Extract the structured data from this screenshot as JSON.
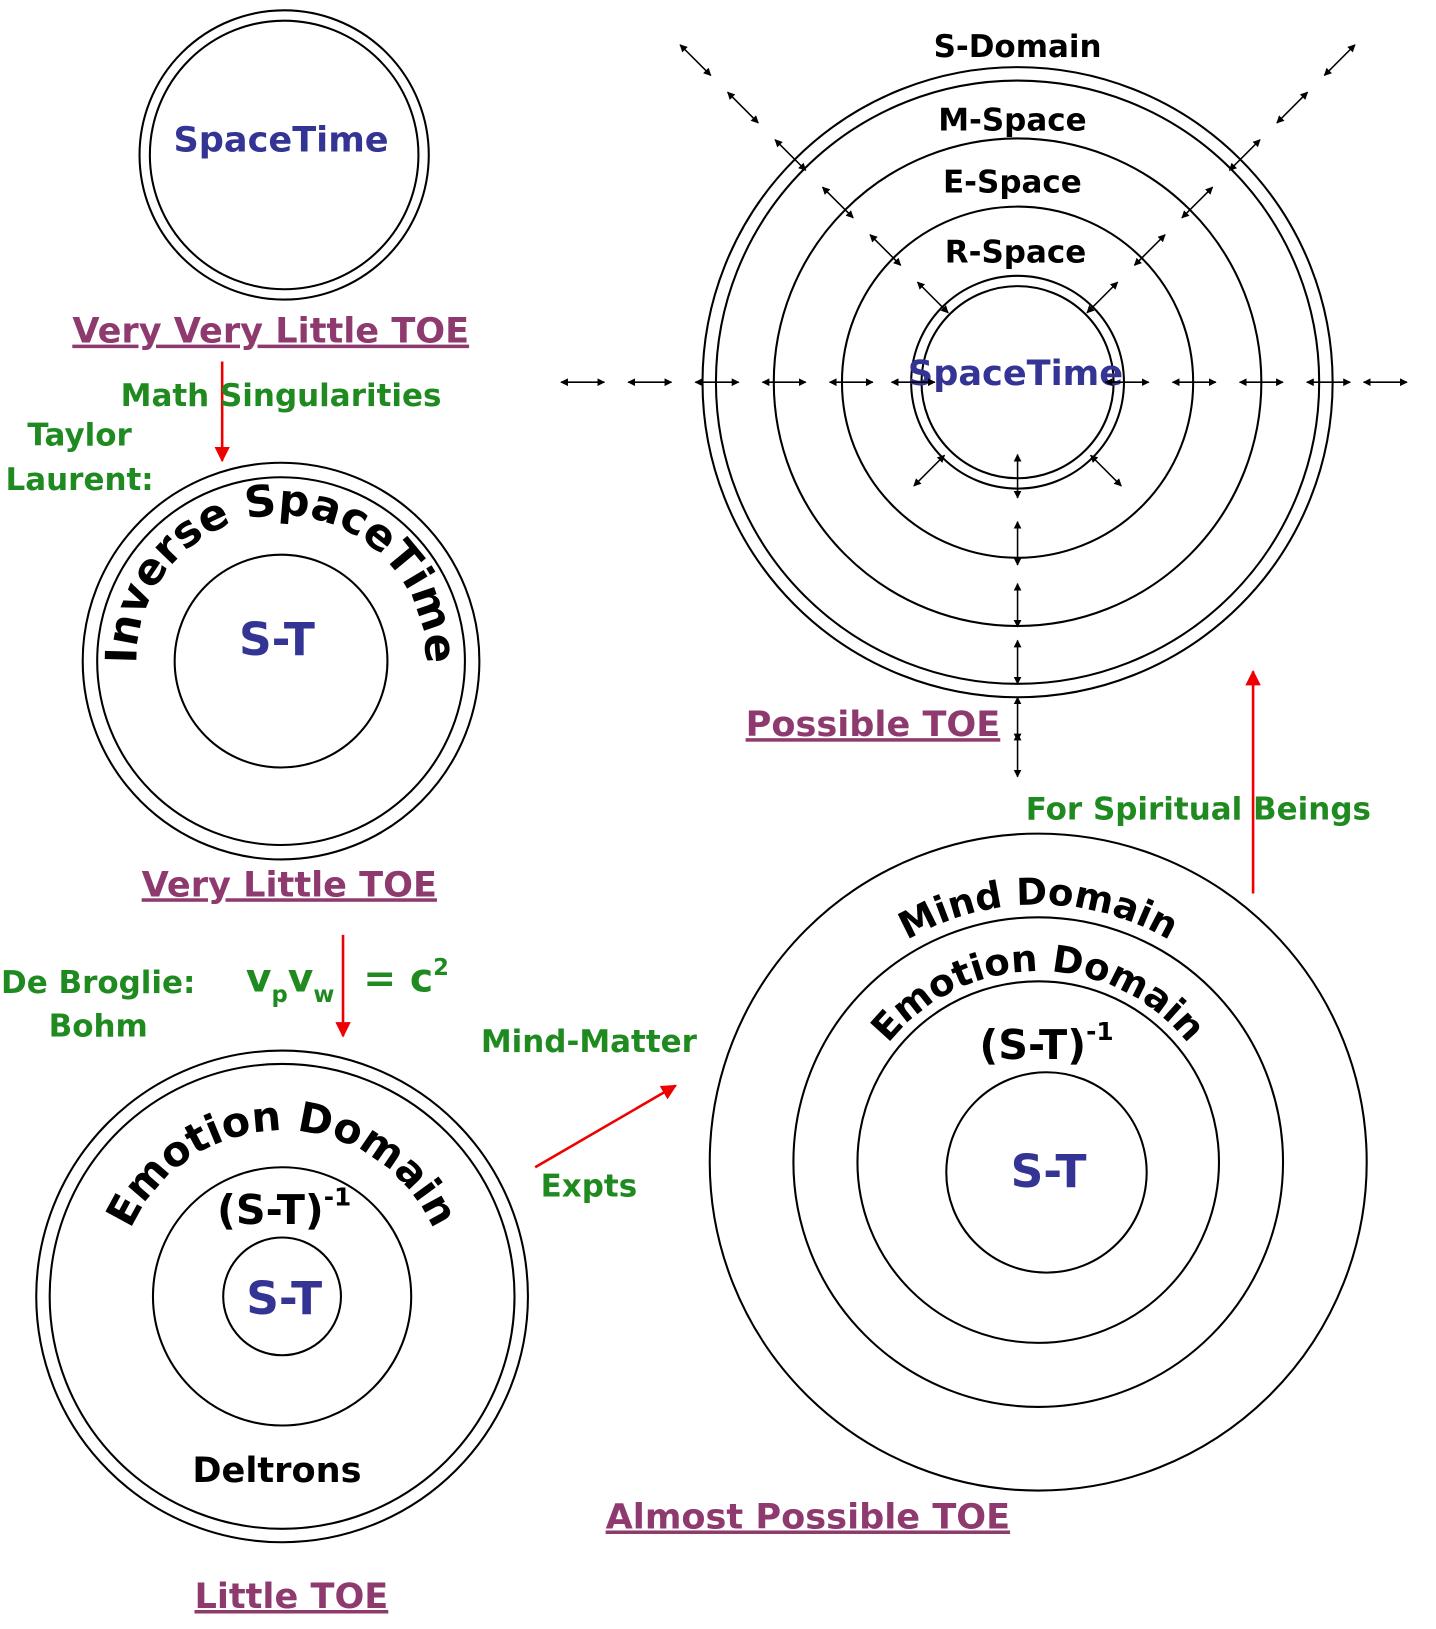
{
  "very_very_little": {
    "center": "SpaceTime",
    "caption": "Very Very Little TOE"
  },
  "step1": {
    "label": "Math  Singularities",
    "notes": [
      "Taylor",
      "Laurent:"
    ]
  },
  "very_little": {
    "ring": "Inverse SpaceTime",
    "center": "S-T",
    "caption": "Very Little TOE"
  },
  "step2": {
    "notes": [
      "De Broglie:",
      "Bohm"
    ],
    "formula": {
      "v1": "v",
      "sub1": "p",
      "v2": "v",
      "sub2": "w",
      "eq": "= c",
      "sup": "2"
    }
  },
  "little": {
    "ring": "Emotion Domain",
    "inverse": {
      "base": "(S-T)",
      "sup": "-1"
    },
    "center": "S-T",
    "bottom": "Deltrons",
    "caption": "Little TOE"
  },
  "step3": {
    "above": "Mind-Matter",
    "below": "Expts"
  },
  "almost": {
    "rings": [
      "Mind Domain",
      "Emotion Domain"
    ],
    "inverse": {
      "base": "(S-T)",
      "sup": "-1"
    },
    "center": "S-T",
    "caption": "Almost Possible TOE"
  },
  "step4": {
    "label": "For  Spiritual Beings"
  },
  "possible": {
    "rings": [
      "S-Domain",
      "M-Space",
      "E-Space",
      "R-Space"
    ],
    "center": "SpaceTime",
    "caption": "Possible TOE"
  }
}
